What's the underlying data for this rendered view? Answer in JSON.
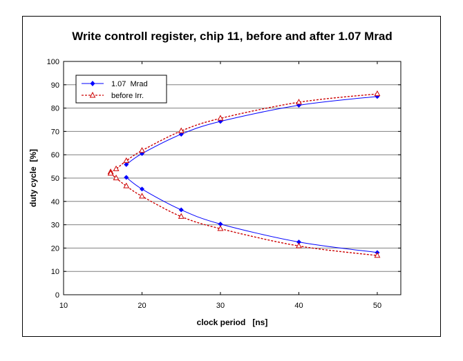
{
  "chart_data": {
    "type": "line",
    "title": "Write controll register, chip 11, before and after 1.07 Mrad",
    "xlabel": "clock period   [ns]",
    "ylabel": "duty cycle  [%]",
    "xlim": [
      10,
      53
    ],
    "ylim": [
      0,
      100
    ],
    "xticks": [
      10,
      20,
      30,
      40,
      50
    ],
    "yticks": [
      0,
      10,
      20,
      30,
      40,
      50,
      60,
      70,
      80,
      90,
      100
    ],
    "grid": "horizontal",
    "legend_position": "top-left",
    "series": [
      {
        "name": "1.07  Mrad",
        "color": "#0000ff",
        "line_style": "solid",
        "marker": "diamond",
        "branches": [
          {
            "x": [
              18,
              20,
              25,
              30,
              40,
              50
            ],
            "y": [
              55.8,
              60.5,
              68.8,
              74.3,
              81.2,
              85.0
            ]
          },
          {
            "x": [
              18,
              20,
              25,
              30,
              40,
              50
            ],
            "y": [
              50.3,
              45.3,
              36.4,
              30.3,
              22.6,
              18.1
            ]
          }
        ]
      },
      {
        "name": "before Irr.",
        "color": "#cc0000",
        "line_style": "dashed",
        "marker": "triangle",
        "branches": [
          {
            "x": [
              16,
              16.7,
              18,
              20,
              25,
              30,
              40,
              50
            ],
            "y": [
              52.6,
              53.9,
              57.4,
              61.8,
              70.2,
              75.6,
              82.5,
              86.1
            ]
          },
          {
            "x": [
              16,
              16.7,
              18,
              20,
              25,
              30,
              40,
              50
            ],
            "y": [
              52.0,
              50.0,
              46.6,
              42.2,
              33.5,
              28.3,
              20.9,
              16.8
            ]
          }
        ]
      }
    ]
  }
}
